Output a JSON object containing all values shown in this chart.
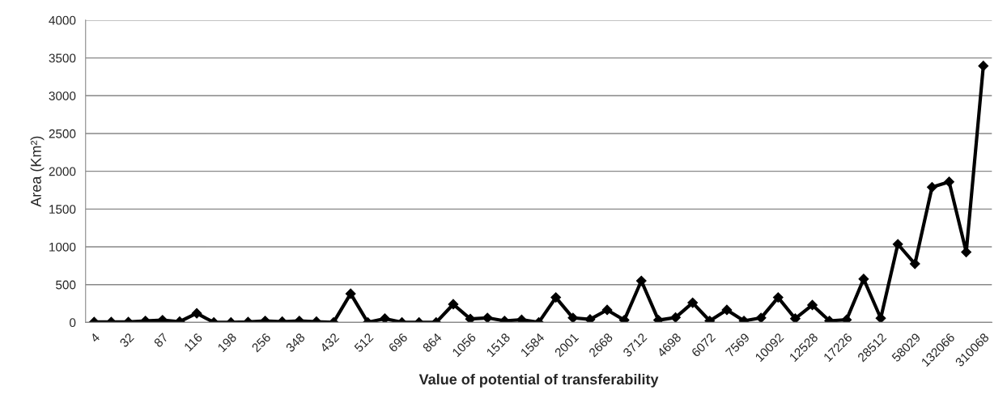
{
  "chart_data": {
    "type": "line",
    "xlabel": "Value of potential of transferability",
    "ylabel": "Area (Km²)",
    "categories": [
      "4",
      null,
      "32",
      null,
      "87",
      null,
      "116",
      null,
      "198",
      null,
      "256",
      null,
      "348",
      null,
      "432",
      null,
      "512",
      null,
      "696",
      null,
      "864",
      null,
      "1056",
      null,
      "1518",
      null,
      "1584",
      null,
      "2001",
      null,
      "2668",
      null,
      "3712",
      null,
      "4698",
      null,
      "6072",
      null,
      "7569",
      null,
      "10092",
      null,
      "12528",
      null,
      "17226",
      null,
      "28512",
      null,
      "58029",
      null,
      "132066",
      null,
      "310068"
    ],
    "series": [
      {
        "color": "#000000",
        "values": [
          5,
          5,
          5,
          20,
          30,
          10,
          120,
          0,
          0,
          5,
          20,
          10,
          20,
          10,
          0,
          380,
          0,
          50,
          0,
          0,
          0,
          240,
          45,
          60,
          20,
          35,
          0,
          330,
          60,
          40,
          165,
          30,
          550,
          30,
          65,
          260,
          20,
          165,
          20,
          60,
          330,
          50,
          230,
          20,
          35,
          575,
          55,
          1035,
          775,
          1790,
          1860,
          930,
          3395
        ]
      }
    ],
    "ylim": [
      0,
      4000
    ],
    "yticks": [
      0,
      500,
      1000,
      1500,
      2000,
      2500,
      3000,
      3500,
      4000
    ],
    "grid": "y",
    "legend": false,
    "marker": "diamond",
    "line_style": "solid"
  }
}
